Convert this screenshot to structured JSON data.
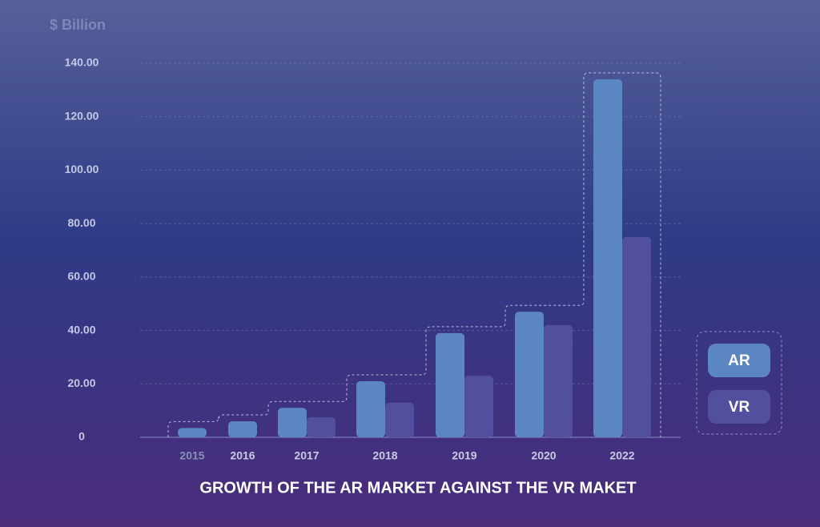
{
  "chart_data": {
    "type": "bar",
    "title": "GROWTH OF THE AR MARKET AGAINST THE VR MAKET",
    "y_axis_label": "$ Billion",
    "categories": [
      "2015",
      "2016",
      "2017",
      "2018",
      "2019",
      "2020",
      "2022"
    ],
    "series": [
      {
        "name": "AR",
        "color": "#5b86c2",
        "values": [
          3.5,
          6,
          11,
          21,
          39,
          47,
          134
        ]
      },
      {
        "name": "VR",
        "color": "#52509e",
        "values": [
          null,
          null,
          7.5,
          13,
          23,
          42,
          75
        ]
      }
    ],
    "ylim": [
      0,
      140
    ],
    "yticks": [
      0,
      {
        "value": 20,
        "label": "20.00"
      },
      {
        "value": 40,
        "label": "40.00"
      },
      {
        "value": 60,
        "label": "60.00"
      },
      {
        "value": 80,
        "label": "80.00"
      },
      {
        "value": 100,
        "label": "100.00"
      },
      {
        "value": 120,
        "label": "120.00"
      },
      {
        "value": 140,
        "label": "140.00"
      }
    ],
    "grid": true
  }
}
